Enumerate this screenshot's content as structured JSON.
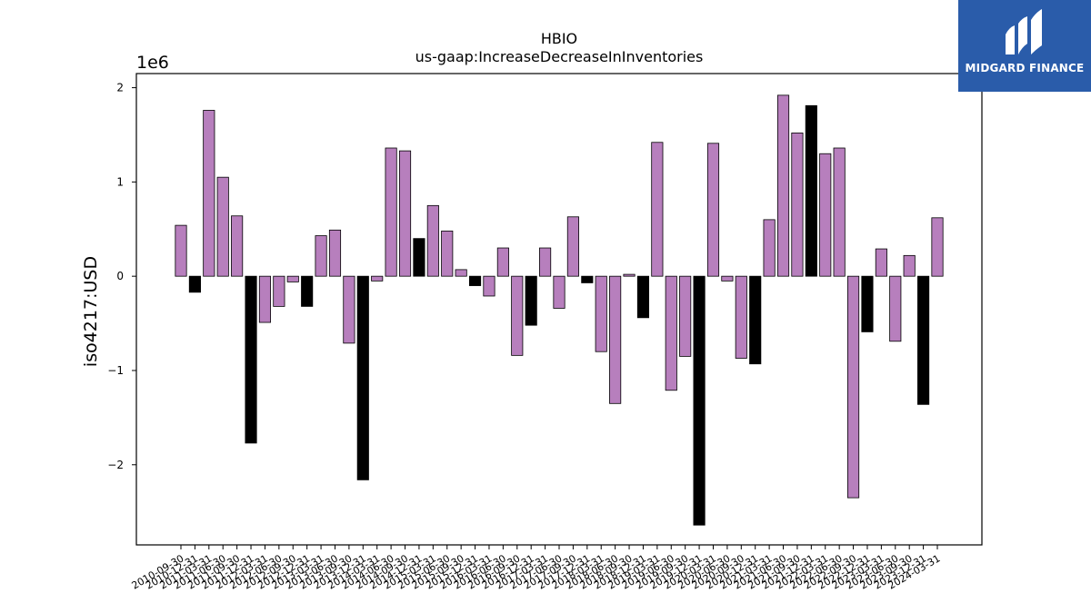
{
  "brand": {
    "name": "MIDGARD FINANCE",
    "bg_color": "#2a5caa",
    "icon": "midgard-logo-icon"
  },
  "chart_data": {
    "type": "bar",
    "title": "HBIO",
    "subtitle": "us-gaap:IncreaseDecreaseInInventories",
    "xlabel": "",
    "ylabel": "iso4217:USD",
    "y_scale_label": "1e6",
    "ylim": [
      -2.85,
      2.15
    ],
    "yticks": [
      -2,
      -1,
      0,
      1,
      2
    ],
    "ytick_labels": [
      "−2",
      "−1",
      "0",
      "1",
      "2"
    ],
    "grid": false,
    "legend": "none",
    "colors": {
      "default": "#b77fbd",
      "highlight": "#000000",
      "edge": "#000000"
    },
    "categories": [
      "2010-09-30",
      "2010-12-31",
      "2011-03-31",
      "2011-06-30",
      "2011-09-30",
      "2011-12-31",
      "2012-03-31",
      "2012-06-30",
      "2012-09-30",
      "2012-12-31",
      "2013-03-31",
      "2013-06-30",
      "2013-09-30",
      "2013-12-31",
      "2014-03-31",
      "2014-06-30",
      "2014-09-30",
      "2014-12-31",
      "2015-03-31",
      "2015-06-30",
      "2015-09-30",
      "2015-12-31",
      "2016-03-31",
      "2016-06-30",
      "2016-09-30",
      "2016-12-31",
      "2017-03-31",
      "2017-06-30",
      "2017-09-30",
      "2017-12-31",
      "2018-03-31",
      "2018-06-30",
      "2018-09-30",
      "2018-12-31",
      "2019-03-31",
      "2019-06-30",
      "2019-09-30",
      "2019-12-31",
      "2020-03-31",
      "2020-06-30",
      "2020-09-30",
      "2020-12-31",
      "2021-03-31",
      "2021-06-30",
      "2021-09-30",
      "2021-12-31",
      "2022-03-31",
      "2022-06-30",
      "2022-09-30",
      "2022-12-31",
      "2023-03-31",
      "2023-06-30",
      "2023-09-30",
      "2023-12-31",
      "2024-03-31"
    ],
    "values": [
      540000,
      -170000,
      1760000,
      1050000,
      640000,
      -1770000,
      -490000,
      -320000,
      -60000,
      -320000,
      430000,
      490000,
      -710000,
      -2160000,
      -50000,
      1360000,
      1330000,
      400000,
      750000,
      480000,
      70000,
      -100000,
      -210000,
      300000,
      -840000,
      -520000,
      300000,
      -340000,
      630000,
      -70000,
      -800000,
      -1350000,
      20000,
      -440000,
      1420000,
      -1210000,
      -850000,
      -2640000,
      1410000,
      -50000,
      -870000,
      -930000,
      600000,
      1920000,
      1520000,
      1810000,
      1300000,
      1360000,
      -2350000,
      -590000,
      290000,
      -690000,
      220000,
      -1360000,
      620000
    ],
    "highlight": [
      false,
      true,
      false,
      false,
      false,
      true,
      false,
      false,
      false,
      true,
      false,
      false,
      false,
      true,
      false,
      false,
      false,
      true,
      false,
      false,
      false,
      true,
      false,
      false,
      false,
      true,
      false,
      false,
      false,
      true,
      false,
      false,
      false,
      true,
      false,
      false,
      false,
      true,
      false,
      false,
      false,
      true,
      false,
      false,
      false,
      true,
      false,
      false,
      false,
      true,
      false,
      false,
      false,
      true,
      false
    ]
  }
}
